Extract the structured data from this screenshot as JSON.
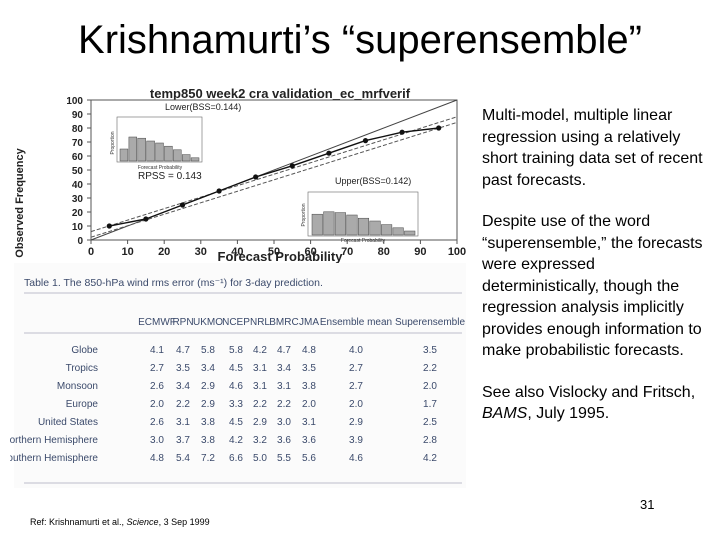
{
  "slide": {
    "title": "Krishnamurti’s “superensemble”",
    "number": "31",
    "reference_prefix": "Ref: Krishnamurti et al., ",
    "reference_journal": "Science",
    "reference_suffix": ", 3 Sep 1999"
  },
  "text": {
    "para1": "Multi-model, multiple linear regression using a relatively short training data set of recent past forecasts.",
    "para2": "Despite use of the word “superensemble,” the forecasts were expressed deterministically, though the regression analysis implicitly provides enough information to make probabilistic forecasts.",
    "para3_prefix": "See also Vislocky and Fritsch, ",
    "para3_journal": "BAMS",
    "para3_suffix": ", July 1995."
  },
  "chart_data": {
    "type": "line",
    "title": "temp850 week2 cra validation_ec_mrfverif",
    "xlabel": "Forecast Probability",
    "ylabel": "Observed Frequency",
    "xlim": [
      0,
      100
    ],
    "ylim": [
      0,
      100
    ],
    "x_ticks": [
      "0",
      "10",
      "20",
      "30",
      "40",
      "50",
      "60",
      "70",
      "80",
      "90",
      "100"
    ],
    "y_ticks": [
      "0",
      "10",
      "20",
      "30",
      "40",
      "50",
      "60",
      "70",
      "80",
      "90",
      "100"
    ],
    "lower_label": "Lower(BSS=0.144)",
    "upper_label": "Upper(BSS=0.142)",
    "rpss_label": "RPSS = 0.143",
    "series": [
      {
        "x": [
          5,
          15,
          25,
          35,
          45,
          55,
          65,
          75,
          85,
          95
        ],
        "y": [
          10,
          15,
          25,
          35,
          45,
          53,
          62,
          71,
          77,
          80
        ]
      }
    ],
    "inset_lower": {
      "ylabel": "Proportion",
      "xlabel": "Forecast Probability",
      "values": [
        0.3,
        0.6,
        0.57,
        0.5,
        0.45,
        0.37,
        0.28,
        0.16,
        0.08
      ]
    },
    "inset_upper": {
      "ylabel": "Proportion",
      "xlabel": "Forecast Probability",
      "values": [
        0.52,
        0.58,
        0.56,
        0.5,
        0.42,
        0.35,
        0.26,
        0.18,
        0.1
      ]
    }
  },
  "table": {
    "caption": "Table 1. The 850-hPa wind rms error (ms⁻¹) for 3-day prediction.",
    "columns": [
      "ECMWF",
      "RPN",
      "UKMO",
      "NCEP",
      "NRL",
      "BMRC",
      "JMA",
      "Ensemble mean",
      "Superensemble"
    ],
    "rows": [
      {
        "label": "Globe",
        "values": [
          "4.1",
          "4.7",
          "5.8",
          "5.8",
          "4.2",
          "4.7",
          "4.8",
          "4.0",
          "3.5"
        ]
      },
      {
        "label": "Tropics",
        "values": [
          "2.7",
          "3.5",
          "3.4",
          "4.5",
          "3.1",
          "3.4",
          "3.5",
          "2.7",
          "2.2"
        ]
      },
      {
        "label": "Monsoon",
        "values": [
          "2.6",
          "3.4",
          "2.9",
          "4.6",
          "3.1",
          "3.1",
          "3.8",
          "2.7",
          "2.0"
        ]
      },
      {
        "label": "Europe",
        "values": [
          "2.0",
          "2.2",
          "2.9",
          "3.3",
          "2.2",
          "2.2",
          "2.0",
          "2.0",
          "1.7"
        ]
      },
      {
        "label": "United States",
        "values": [
          "2.6",
          "3.1",
          "3.8",
          "4.5",
          "2.9",
          "3.0",
          "3.1",
          "2.9",
          "2.5"
        ]
      },
      {
        "label": "Northern Hemisphere",
        "values": [
          "3.0",
          "3.7",
          "3.8",
          "4.2",
          "3.2",
          "3.6",
          "3.6",
          "3.9",
          "2.8"
        ]
      },
      {
        "label": "Southern Hemisphere",
        "values": [
          "4.8",
          "5.4",
          "7.2",
          "6.6",
          "5.0",
          "5.5",
          "5.6",
          "4.6",
          "4.2"
        ]
      }
    ]
  }
}
